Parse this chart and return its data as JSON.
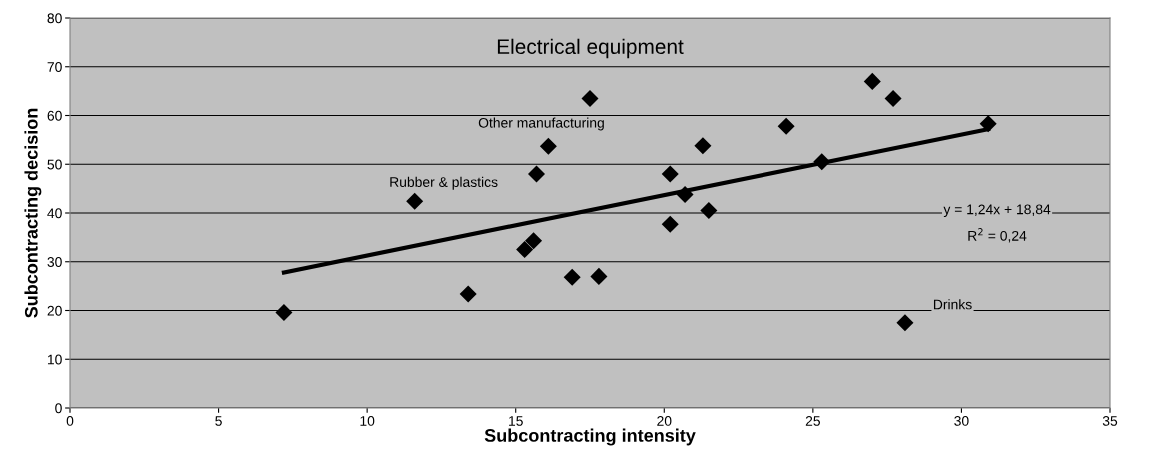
{
  "chart_data": {
    "type": "scatter",
    "xlabel": "Subcontracting intensity",
    "ylabel": "Subcontracting decision",
    "xlim": [
      0,
      35
    ],
    "xticks": [
      0,
      5,
      10,
      15,
      20,
      25,
      30,
      35
    ],
    "ylim": [
      0,
      80
    ],
    "yticks": [
      0,
      10,
      20,
      30,
      40,
      50,
      60,
      70,
      80
    ],
    "grid": "y",
    "legend": false,
    "marker": "diamond",
    "series": [
      {
        "color": "#000000",
        "x": [
          7.2,
          11.6,
          13.4,
          15.3,
          15.6,
          15.7,
          16.1,
          16.9,
          17.5,
          17.8,
          20.2,
          20.2,
          20.7,
          21.3,
          21.5,
          24.1,
          25.3,
          27.0,
          27.7,
          28.1,
          30.9
        ],
        "values": [
          19.6,
          42.4,
          23.4,
          32.5,
          34.3,
          48.0,
          53.7,
          26.8,
          63.5,
          27.0,
          48.0,
          37.7,
          43.8,
          53.8,
          40.5,
          57.8,
          50.5,
          67.0,
          63.5,
          17.5,
          58.3
        ]
      },
      {
        "type": "line",
        "marker": "none",
        "color": "#000000",
        "x": [
          7.2,
          30.9
        ],
        "values": [
          27.8,
          57.2
        ]
      }
    ],
    "annotations": [
      {
        "text": "Electrical equipment",
        "x": 17.5,
        "y": 63.5
      },
      {
        "text": "Other manufacturing",
        "x": 16.1,
        "y": 53.7
      },
      {
        "text": "Rubber & plastics",
        "x": 11.6,
        "y": 42.4
      },
      "Drinks",
      "y = 1,24x + 18,84",
      "R$^{2}$ = 0,24"
    ]
  }
}
